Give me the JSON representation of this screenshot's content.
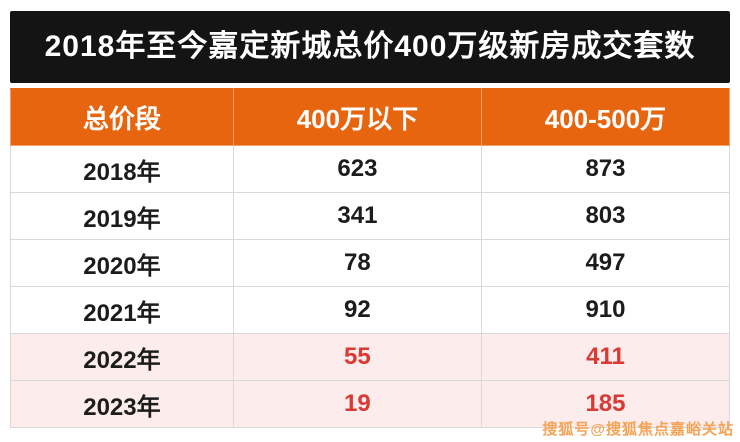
{
  "title": "2018年至今嘉定新城总价400万级新房成交套数",
  "watermark": "搜狐号@搜狐焦点嘉峪关站",
  "colors": {
    "banner_bg": "#141414",
    "header_bg": "#e8650f",
    "highlight_bg": "#fdecec",
    "highlight_text": "#d93a34",
    "watermark_text": "#f59b45"
  },
  "chart_data": {
    "type": "table",
    "title": "2018年至今嘉定新城总价400万级新房成交套数",
    "columns": [
      "总价段",
      "400万以下",
      "400-500万"
    ],
    "rows": [
      {
        "year": "2018年",
        "below_400": "623",
        "range_400_500": "873",
        "highlight": false
      },
      {
        "year": "2019年",
        "below_400": "341",
        "range_400_500": "803",
        "highlight": false
      },
      {
        "year": "2020年",
        "below_400": "78",
        "range_400_500": "497",
        "highlight": false
      },
      {
        "year": "2021年",
        "below_400": "92",
        "range_400_500": "910",
        "highlight": false
      },
      {
        "year": "2022年",
        "below_400": "55",
        "range_400_500": "411",
        "highlight": true
      },
      {
        "year": "2023年",
        "below_400": "19",
        "range_400_500": "185",
        "highlight": true
      }
    ]
  }
}
